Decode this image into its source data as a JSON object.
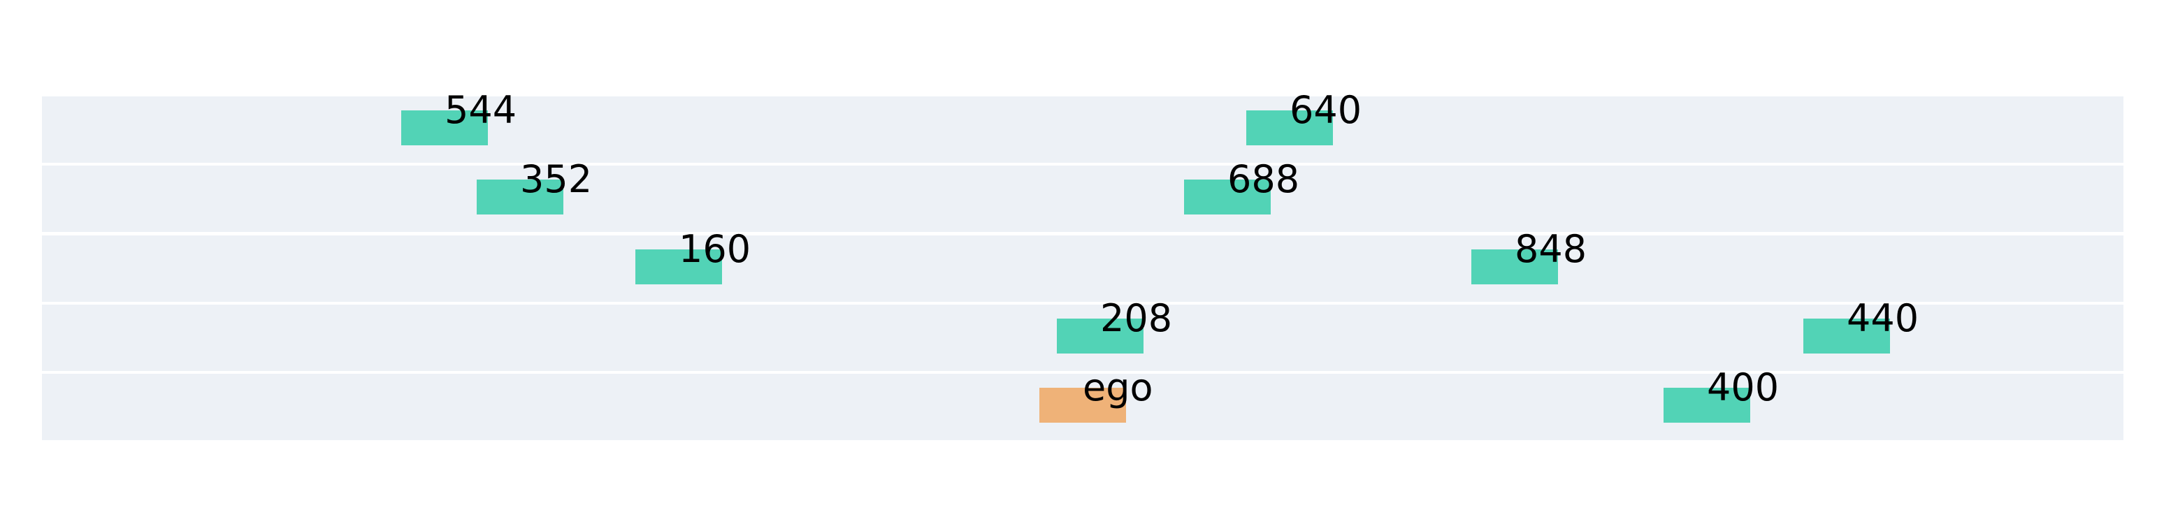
{
  "scene": {
    "colors": {
      "background": "#ffffff",
      "lane": "#edf1f6",
      "vehicle": "#52d3b6",
      "ego": "#efb278"
    },
    "lanes": [
      {
        "vehicles": [
          {
            "label": "544",
            "type": "vehicle"
          },
          {
            "label": "640",
            "type": "vehicle"
          }
        ]
      },
      {
        "vehicles": [
          {
            "label": "352",
            "type": "vehicle"
          },
          {
            "label": "688",
            "type": "vehicle"
          }
        ]
      },
      {
        "vehicles": [
          {
            "label": "160",
            "type": "vehicle"
          },
          {
            "label": "848",
            "type": "vehicle"
          }
        ]
      },
      {
        "vehicles": [
          {
            "label": "208",
            "type": "vehicle"
          },
          {
            "label": "440",
            "type": "vehicle"
          }
        ]
      },
      {
        "vehicles": [
          {
            "label": "ego",
            "type": "ego"
          },
          {
            "label": "400",
            "type": "vehicle"
          }
        ]
      }
    ]
  }
}
